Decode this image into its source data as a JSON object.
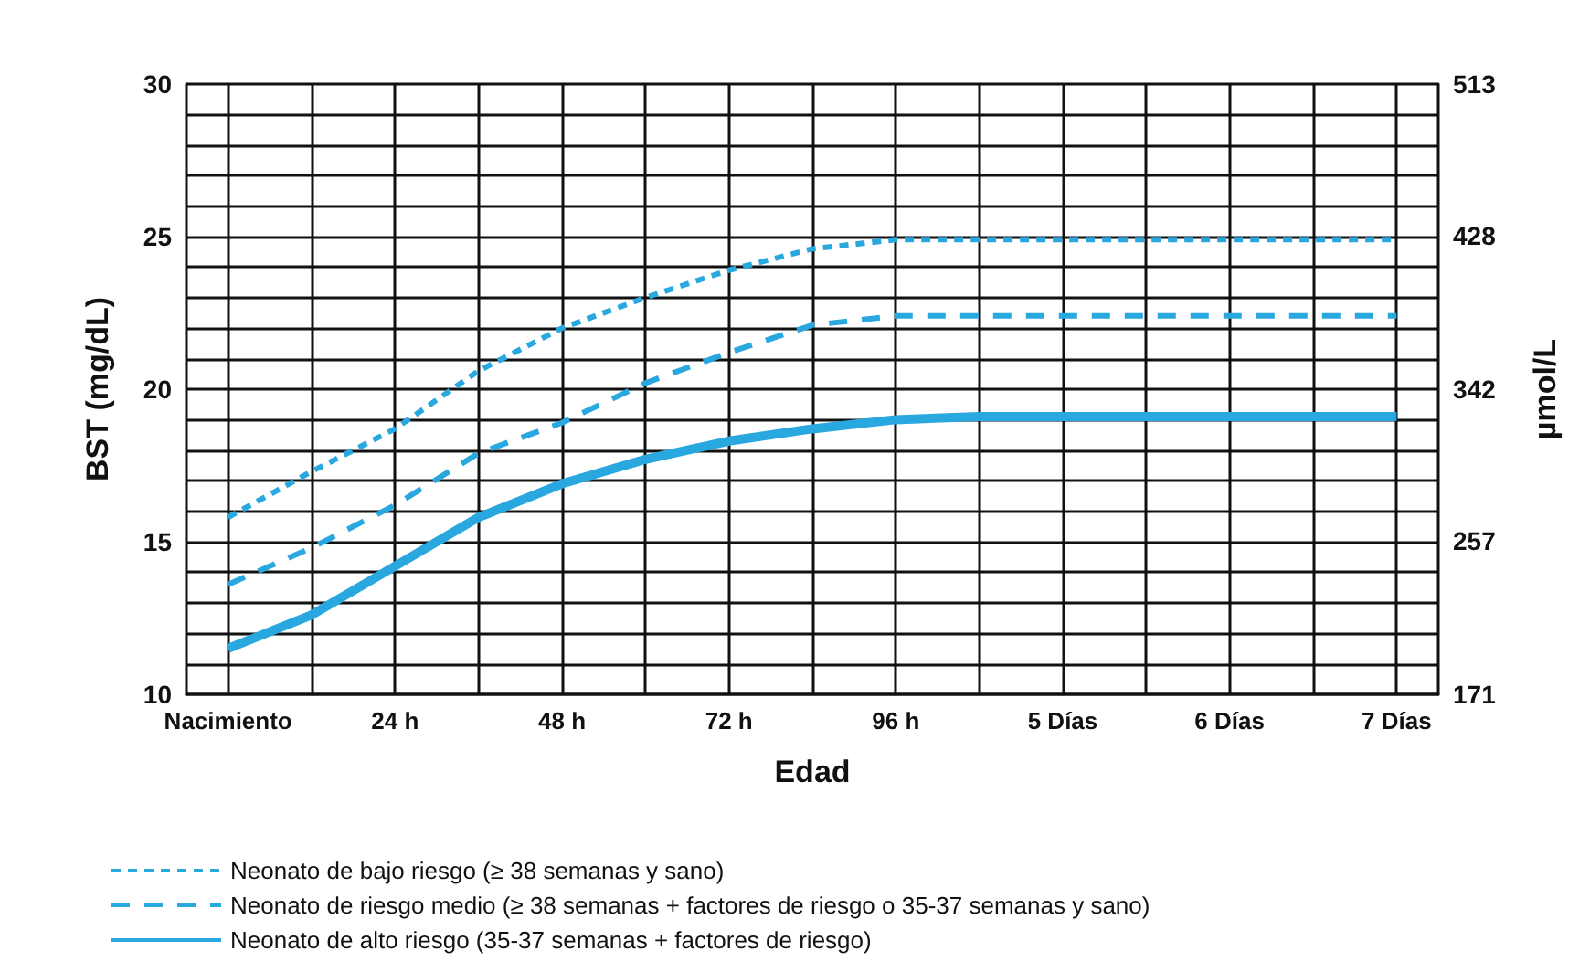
{
  "chart_data": {
    "type": "line",
    "xlabel": "Edad",
    "ylabel": "BST (mg/dL)",
    "y2label": "µmol/L",
    "categories": [
      "Nacimiento",
      null,
      "24 h",
      null,
      "48 h",
      null,
      "72 h",
      null,
      "96 h",
      null,
      "5 Días",
      null,
      "6 Días",
      null,
      "7 Días"
    ],
    "series": [
      {
        "name": "Neonato de bajo riesgo (≥ 38 semanas y sano)",
        "color": "#29a8e0",
        "line_style": "dotted",
        "values": [
          15.8,
          17.3,
          18.7,
          20.6,
          22.0,
          23.0,
          23.9,
          24.6,
          24.9,
          24.9,
          24.9,
          24.9,
          24.9,
          24.9,
          24.9
        ]
      },
      {
        "name": "Neonato de riesgo medio (≥ 38 semanas + factores de riesgo o 35-37 semanas y sano)",
        "color": "#29a8e0",
        "line_style": "dashed",
        "values": [
          13.6,
          14.8,
          16.2,
          17.9,
          18.9,
          20.2,
          21.2,
          22.1,
          22.4,
          22.4,
          22.4,
          22.4,
          22.4,
          22.4,
          22.4
        ]
      },
      {
        "name": "Neonato de alto riesgo (35-37 semanas + factores de riesgo)",
        "color": "#29a8e0",
        "line_style": "solid",
        "values": [
          11.5,
          12.6,
          14.2,
          15.8,
          16.9,
          17.7,
          18.3,
          18.7,
          19.0,
          19.1,
          19.1,
          19.1,
          19.1,
          19.1,
          19.1
        ]
      }
    ],
    "ylim": [
      10,
      30
    ],
    "yticks": [
      10,
      {
        "value": 11,
        "label": null
      },
      {
        "value": 12,
        "label": null
      },
      {
        "value": 13,
        "label": null
      },
      {
        "value": 14,
        "label": null
      },
      15,
      {
        "value": 16,
        "label": null
      },
      {
        "value": 17,
        "label": null
      },
      {
        "value": 18,
        "label": null
      },
      {
        "value": 19,
        "label": null
      },
      20,
      {
        "value": 21,
        "label": null
      },
      {
        "value": 22,
        "label": null
      },
      {
        "value": 23,
        "label": null
      },
      {
        "value": 24,
        "label": null
      },
      25,
      {
        "value": 26,
        "label": null
      },
      {
        "value": 27,
        "label": null
      },
      {
        "value": 28,
        "label": null
      },
      {
        "value": 29,
        "label": null
      },
      30
    ],
    "y2lim": [
      171,
      513
    ],
    "y2ticks": [
      171,
      257,
      342,
      428,
      513
    ],
    "grid": true,
    "legend": "bottom left",
    "marker": "none"
  }
}
